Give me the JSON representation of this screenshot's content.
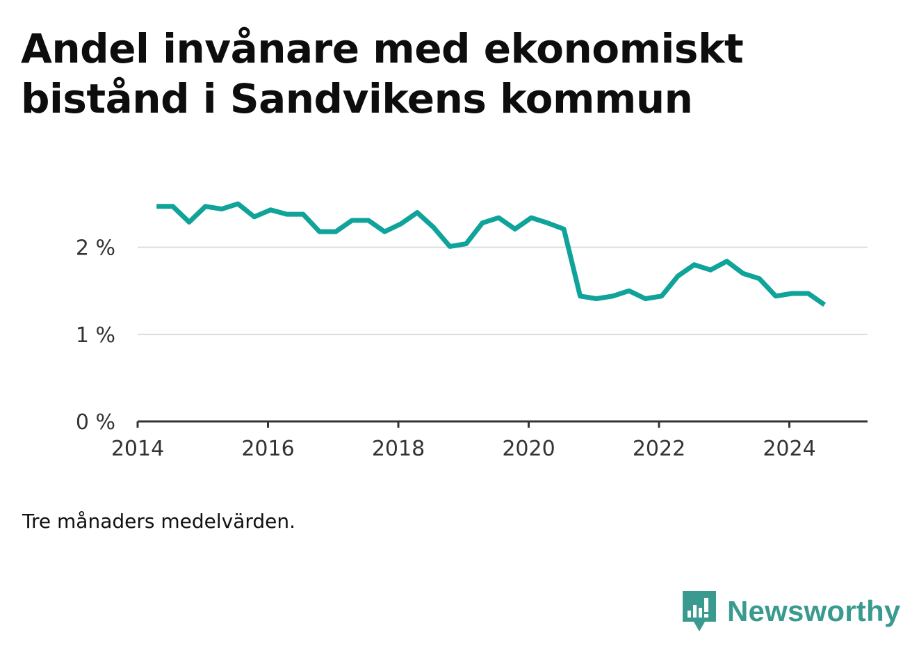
{
  "title": "Andel invånare med ekonomiskt bistånd i Sandvikens kommun",
  "note": "Tre månaders medelvärden.",
  "brand": {
    "name": "Newsworthy",
    "icon": "newsworthy-logo-icon",
    "color": "#3a9a8f"
  },
  "colors": {
    "line": "#0fa39a",
    "grid": "#dddddd",
    "axis": "#333333"
  },
  "chart_data": {
    "type": "line",
    "title": "Andel invånare med ekonomiskt bistånd i Sandvikens kommun",
    "xlabel": "",
    "ylabel": "",
    "xlim": [
      2014,
      2025.2
    ],
    "ylim": [
      0,
      2.9
    ],
    "grid": "horizontal",
    "x_ticks": [
      2014,
      2016,
      2018,
      2020,
      2022,
      2024
    ],
    "x_tick_labels": [
      "2014",
      "2016",
      "2018",
      "2020",
      "2022",
      "2024"
    ],
    "y_ticks": [
      0,
      1,
      2
    ],
    "y_tick_labels": [
      "0 %",
      "1 %",
      "2 %"
    ],
    "series": [
      {
        "x": [
          2014.29,
          2014.54,
          2014.79,
          2015.04,
          2015.29,
          2015.54,
          2015.79,
          2016.04,
          2016.29,
          2016.54,
          2016.79,
          2017.04,
          2017.29,
          2017.54,
          2017.79,
          2018.04,
          2018.29,
          2018.54,
          2018.79,
          2019.04,
          2019.29,
          2019.54,
          2019.79,
          2020.04,
          2020.29,
          2020.54,
          2020.79,
          2021.04,
          2021.29,
          2021.54,
          2021.79,
          2022.04,
          2022.29,
          2022.54,
          2022.79,
          2023.04,
          2023.29,
          2023.54,
          2023.79,
          2024.04,
          2024.29,
          2024.54
        ],
        "y": [
          2.47,
          2.47,
          2.29,
          2.47,
          2.44,
          2.5,
          2.35,
          2.43,
          2.38,
          2.38,
          2.18,
          2.18,
          2.31,
          2.31,
          2.18,
          2.27,
          2.4,
          2.23,
          2.01,
          2.04,
          2.28,
          2.34,
          2.21,
          2.34,
          2.28,
          2.21,
          1.44,
          1.41,
          1.44,
          1.5,
          1.41,
          1.44,
          1.67,
          1.8,
          1.74,
          1.84,
          1.7,
          1.64,
          1.44,
          1.47,
          1.47,
          1.34
        ]
      }
    ]
  }
}
